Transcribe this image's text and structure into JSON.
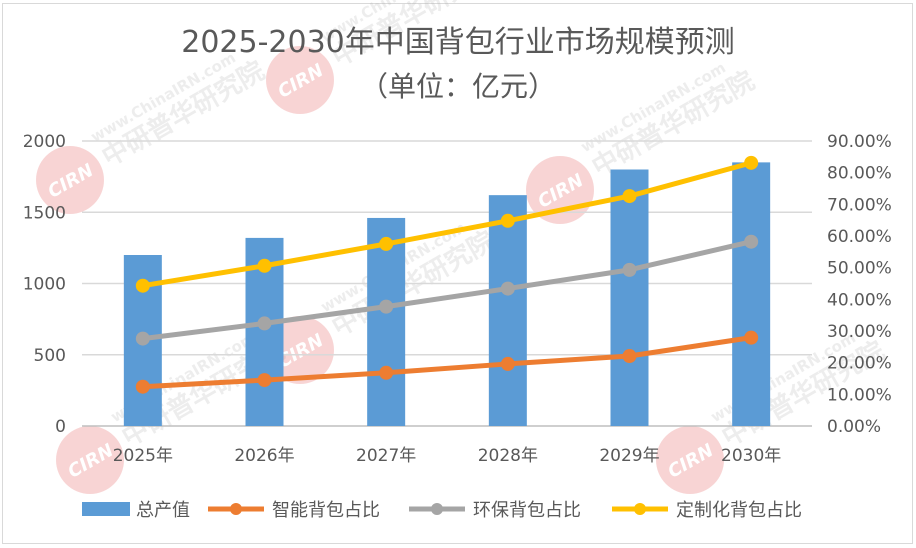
{
  "chart_data": {
    "type": "bar+line",
    "title": "2025-2030年中国背包行业市场规模预测",
    "subtitle": "（单位：亿元）",
    "categories": [
      "2025年",
      "2026年",
      "2027年",
      "2028年",
      "2029年",
      "2030年"
    ],
    "y_left": {
      "ylim": [
        0,
        2000
      ],
      "ticks": [
        0,
        500,
        1000,
        1500,
        2000
      ],
      "tick_labels": [
        "0",
        "500",
        "1000",
        "1500",
        "2000"
      ]
    },
    "y_right": {
      "ylim": [
        0,
        90
      ],
      "ticks": [
        0,
        10,
        20,
        30,
        40,
        50,
        60,
        70,
        80,
        90
      ],
      "tick_labels": [
        "0.00%",
        "10.00%",
        "20.00%",
        "30.00%",
        "40.00%",
        "50.00%",
        "60.00%",
        "70.00%",
        "80.00%",
        "90.00%"
      ]
    },
    "grid": true,
    "legend_position": "bottom",
    "series": [
      {
        "name": "总产值",
        "kind": "bar",
        "axis": "left",
        "color": "#5b9bd5",
        "values": [
          1200,
          1320,
          1460,
          1620,
          1800,
          1850
        ]
      },
      {
        "name": "智能背包占比",
        "kind": "line",
        "axis": "right",
        "color": "#ed7d31",
        "values": [
          12.4,
          14.5,
          16.8,
          19.6,
          22.1,
          27.9
        ]
      },
      {
        "name": "环保背包占比",
        "kind": "line",
        "axis": "right",
        "color": "#a5a5a5",
        "values": [
          27.6,
          32.4,
          37.7,
          43.4,
          49.3,
          58.2
        ]
      },
      {
        "name": "定制化背包占比",
        "kind": "line",
        "axis": "right",
        "color": "#ffc000",
        "values": [
          44.3,
          50.6,
          57.5,
          64.8,
          72.6,
          83.1
        ]
      }
    ]
  },
  "watermark": {
    "logo_text": "CIRN",
    "url_text": "www.ChinaIRN.com",
    "cn_text": "中研普华研究院"
  },
  "colors": {
    "text": "#595959",
    "grid": "#d9d9d9",
    "watermark_red": "#e8a0a0"
  }
}
